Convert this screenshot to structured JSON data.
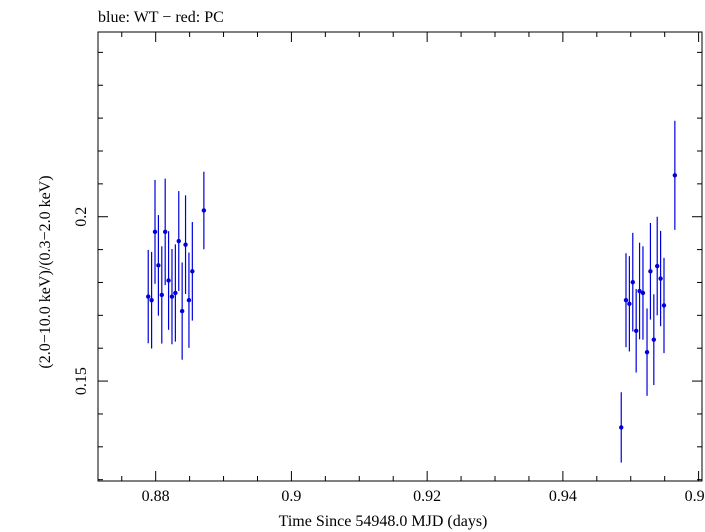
{
  "chart_data": {
    "type": "scatter",
    "title": "blue: WT − red: PC",
    "xlabel": "Time Since 54948.0 MJD (days)",
    "ylabel": "(2.0−10.0 keV)/(0.3−2.0 keV)",
    "xlim": [
      0.8715,
      0.9605
    ],
    "ylim": [
      0.1196,
      0.2562
    ],
    "xticks": [
      0.88,
      0.9,
      0.92,
      0.94,
      0.96
    ],
    "xtick_labels": [
      "0.88",
      "0.9",
      "0.92",
      "0.94",
      "0.96"
    ],
    "yticks": [
      0.15,
      0.2
    ],
    "ytick_labels": [
      "0.15",
      "0.2"
    ],
    "grid": false,
    "series": [
      {
        "name": "WT",
        "color": "#0000dd",
        "points": [
          {
            "x": 0.8789,
            "y": 0.1757,
            "err": 0.0142
          },
          {
            "x": 0.8794,
            "y": 0.1746,
            "err": 0.0147
          },
          {
            "x": 0.8799,
            "y": 0.1954,
            "err": 0.0158
          },
          {
            "x": 0.8804,
            "y": 0.1852,
            "err": 0.0153
          },
          {
            "x": 0.8809,
            "y": 0.1762,
            "err": 0.0148
          },
          {
            "x": 0.8814,
            "y": 0.1954,
            "err": 0.0162
          },
          {
            "x": 0.8819,
            "y": 0.1806,
            "err": 0.015
          },
          {
            "x": 0.8824,
            "y": 0.1757,
            "err": 0.0145
          },
          {
            "x": 0.8829,
            "y": 0.1768,
            "err": 0.0148
          },
          {
            "x": 0.8834,
            "y": 0.1926,
            "err": 0.0152
          },
          {
            "x": 0.8839,
            "y": 0.1713,
            "err": 0.0148
          },
          {
            "x": 0.8844,
            "y": 0.1915,
            "err": 0.015
          },
          {
            "x": 0.8849,
            "y": 0.1746,
            "err": 0.0145
          },
          {
            "x": 0.8854,
            "y": 0.1834,
            "err": 0.015
          },
          {
            "x": 0.8871,
            "y": 0.2019,
            "err": 0.0118
          },
          {
            "x": 0.9486,
            "y": 0.1359,
            "err": 0.0107
          },
          {
            "x": 0.9493,
            "y": 0.1746,
            "err": 0.0143
          },
          {
            "x": 0.9498,
            "y": 0.1735,
            "err": 0.0145
          },
          {
            "x": 0.9503,
            "y": 0.1801,
            "err": 0.015
          },
          {
            "x": 0.9508,
            "y": 0.1653,
            "err": 0.0127
          },
          {
            "x": 0.9513,
            "y": 0.1774,
            "err": 0.0147
          },
          {
            "x": 0.9518,
            "y": 0.1768,
            "err": 0.0142
          },
          {
            "x": 0.9524,
            "y": 0.1588,
            "err": 0.0133
          },
          {
            "x": 0.9529,
            "y": 0.1834,
            "err": 0.0147
          },
          {
            "x": 0.9534,
            "y": 0.1626,
            "err": 0.0138
          },
          {
            "x": 0.9539,
            "y": 0.185,
            "err": 0.015
          },
          {
            "x": 0.9544,
            "y": 0.1812,
            "err": 0.0145
          },
          {
            "x": 0.9549,
            "y": 0.173,
            "err": 0.0145
          },
          {
            "x": 0.9565,
            "y": 0.2126,
            "err": 0.0166
          }
        ]
      }
    ]
  }
}
